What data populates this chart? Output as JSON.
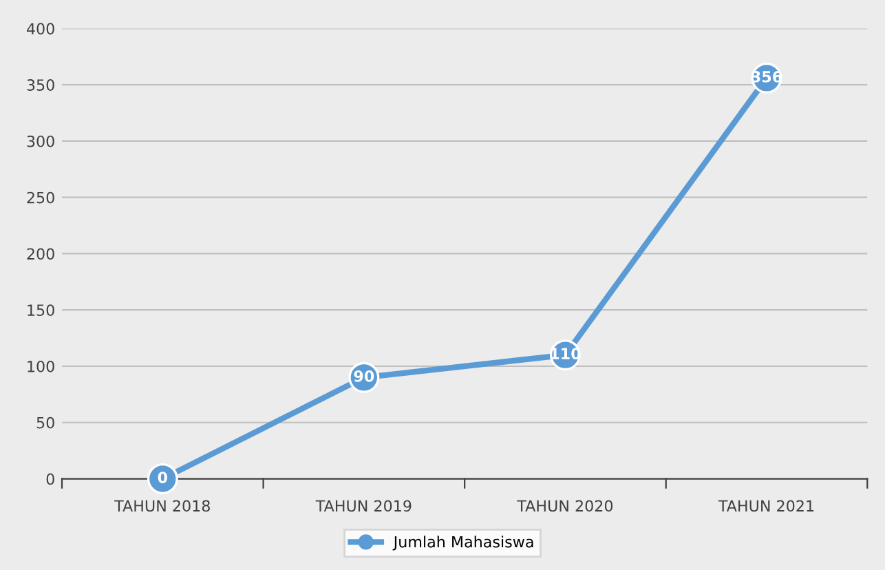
{
  "chart_data": {
    "type": "line",
    "categories": [
      "TAHUN 2018",
      "TAHUN 2019",
      "TAHUN 2020",
      "TAHUN 2021"
    ],
    "series": [
      {
        "name": "Jumlah Mahasiswa",
        "color": "#5b9bd5",
        "values": [
          0,
          90,
          110,
          356
        ]
      }
    ],
    "ylim": [
      0,
      400
    ],
    "yticks": [
      0,
      50,
      100,
      150,
      200,
      250,
      300,
      350,
      400
    ],
    "grid": "y",
    "legend": "bottom",
    "marker": "circle",
    "line_style": "solid",
    "data_labels": true
  }
}
